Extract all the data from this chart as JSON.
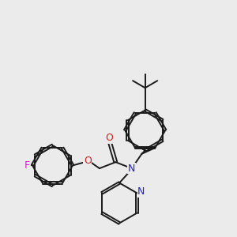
{
  "bg_color": "#ebebeb",
  "bond_color": "#1a1a1a",
  "N_color": "#2222cc",
  "O_color": "#cc2222",
  "F_color": "#cc22cc",
  "line_width": 1.4,
  "dbo": 0.05,
  "figsize": [
    3.0,
    3.0
  ],
  "dpi": 100,
  "xlim": [
    0.0,
    9.0
  ],
  "ylim": [
    -1.0,
    9.5
  ]
}
